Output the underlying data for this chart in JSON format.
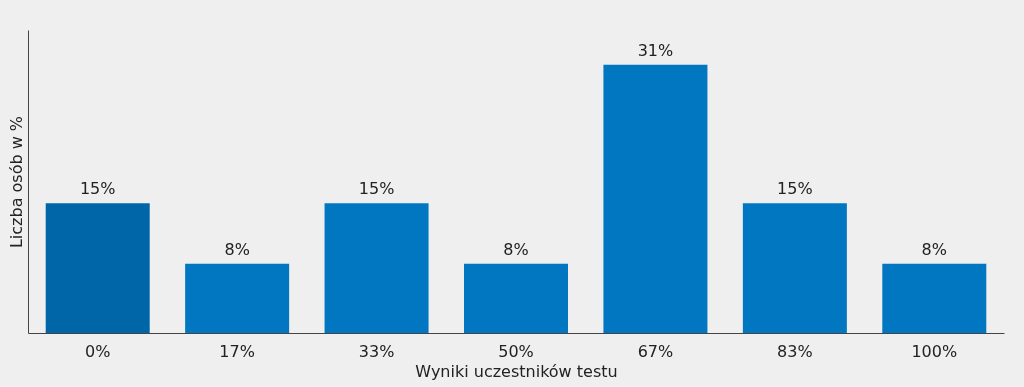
{
  "chart_data": {
    "type": "bar",
    "xlabel": "Wyniki uczestników testu",
    "ylabel": "Liczba osób w %",
    "categories": [
      "0%",
      "17%",
      "33%",
      "50%",
      "67%",
      "83%",
      "100%"
    ],
    "values": [
      15,
      8,
      15,
      8,
      31,
      15,
      8
    ],
    "value_labels": [
      "15%",
      "8%",
      "15%",
      "8%",
      "31%",
      "15%",
      "8%"
    ],
    "colors": [
      "#0066a8",
      "#0077c0",
      "#0077c0",
      "#0077c0",
      "#0077c0",
      "#0077c0",
      "#0077c0"
    ]
  }
}
